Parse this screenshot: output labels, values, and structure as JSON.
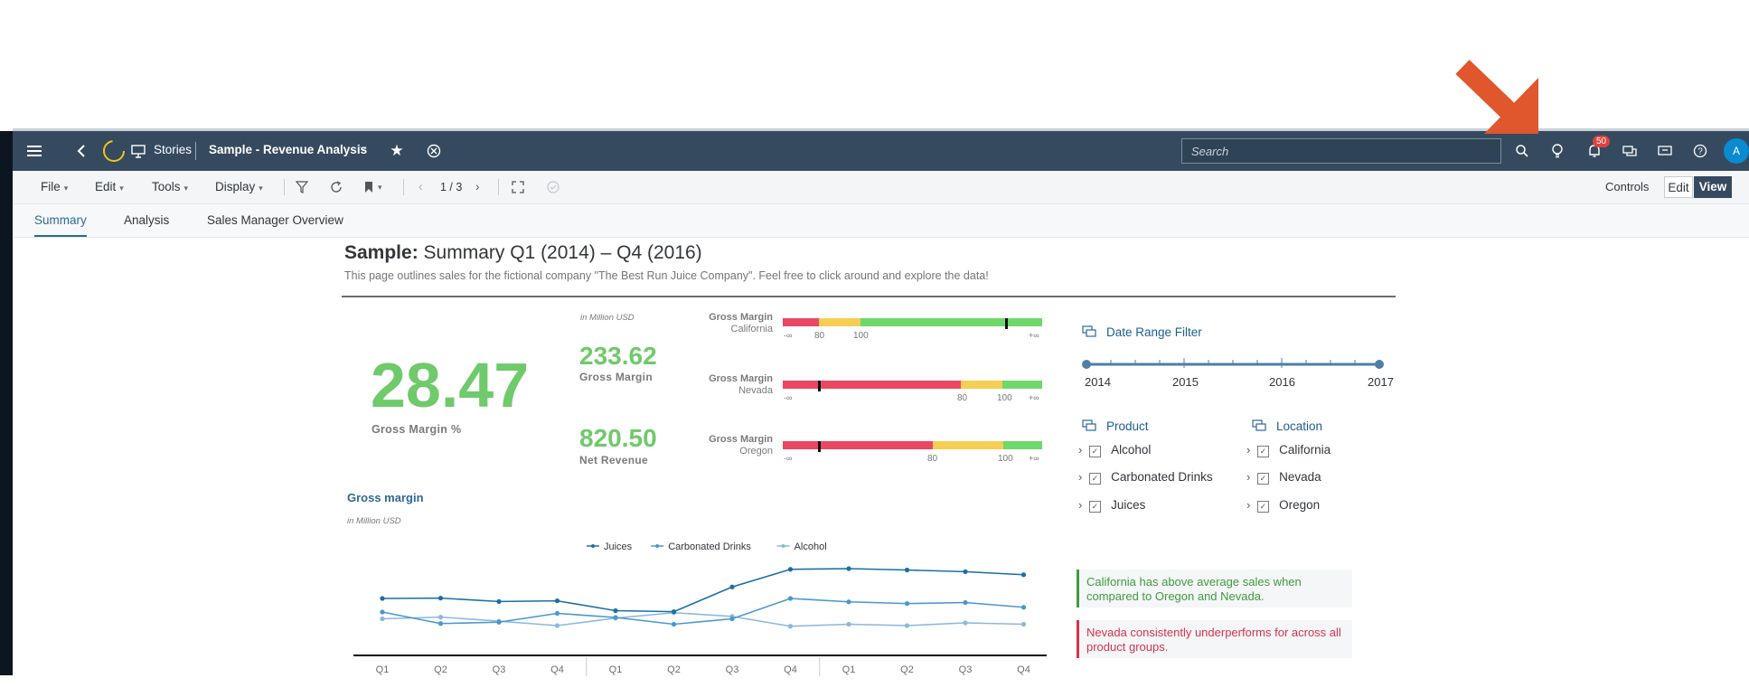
{
  "shell": {
    "stories_label": "Stories",
    "story_title": "Sample - Revenue Analysis",
    "search_placeholder": "Search",
    "notifications_count": "50",
    "avatar_initial": "A"
  },
  "toolbar": {
    "file": "File",
    "edit": "Edit",
    "tools": "Tools",
    "display": "Display",
    "page_indicator": "1 / 3",
    "controls": "Controls",
    "edit_mode": "Edit",
    "view_mode": "View"
  },
  "tabs": [
    {
      "label": "Summary"
    },
    {
      "label": "Analysis"
    },
    {
      "label": "Sales Manager Overview"
    }
  ],
  "page": {
    "heading_bold": "Sample:",
    "heading_rest": " Summary Q1 (2014) – Q4 (2016)",
    "description": "This page outlines sales for the fictional company \"The Best Run Juice Company\". Feel free to click around and explore the data!"
  },
  "kpis": {
    "unit_note": "in Million USD",
    "gross_margin_pct_value": "28.47",
    "gross_margin_pct_label": "Gross Margin %",
    "gross_margin_value": "233.62",
    "gross_margin_label": "Gross Margin",
    "net_revenue_value": "820.50",
    "net_revenue_label": "Net Revenue"
  },
  "bullets": [
    {
      "title": "Gross Margin",
      "region": "California",
      "ticks": [
        "-∞",
        "80",
        "100",
        "+∞"
      ],
      "marker": 0.86
    },
    {
      "title": "Gross Margin",
      "region": "Nevada",
      "ticks": [
        "-∞",
        "80",
        "100",
        "+∞"
      ],
      "marker": 0.14
    },
    {
      "title": "Gross Margin",
      "region": "Oregon",
      "ticks": [
        "-∞",
        "80",
        "100",
        "+∞"
      ],
      "marker": 0.14
    }
  ],
  "colors": {
    "shell": "#354a5f",
    "kpi_green": "#6fca6b",
    "bullet_red": "#ea4763",
    "bullet_yellow": "#f5ce53",
    "bullet_green": "#6fd86b",
    "arrow": "#e0572d"
  },
  "filters": {
    "date_range_title": "Date Range Filter",
    "years": [
      "2014",
      "2015",
      "2016",
      "2017"
    ],
    "product_title": "Product",
    "products": [
      "Alcohol",
      "Carbonated Drinks",
      "Juices"
    ],
    "location_title": "Location",
    "locations": [
      "California",
      "Nevada",
      "Oregon"
    ]
  },
  "insights": {
    "positive": "California has above average sales when compared to Oregon and Nevada.",
    "negative": "Nevada consistently underperforms for across all product groups."
  },
  "chart_data": {
    "type": "line",
    "title": "Gross margin",
    "subtitle": "in Million USD",
    "categories": [
      "Q1",
      "Q2",
      "Q3",
      "Q4",
      "Q1",
      "Q2",
      "Q3",
      "Q4",
      "Q1",
      "Q2",
      "Q3",
      "Q4"
    ],
    "series": [
      {
        "name": "Juices",
        "color": "#1b6fa6",
        "values": [
          8.4,
          8.45,
          7.95,
          8.05,
          6.6,
          6.45,
          10.1,
          12.7,
          12.8,
          12.6,
          12.35,
          11.9
        ]
      },
      {
        "name": "Carbonated Drinks",
        "color": "#4a97cf",
        "values": [
          6.4,
          4.7,
          4.9,
          6.2,
          5.6,
          4.6,
          5.4,
          8.4,
          7.9,
          7.65,
          7.8,
          7.1
        ]
      },
      {
        "name": "Alcohol",
        "color": "#8bb8de",
        "values": [
          5.4,
          5.65,
          5.05,
          4.4,
          5.5,
          6.3,
          5.75,
          4.3,
          4.6,
          4.4,
          4.8,
          4.6
        ]
      }
    ],
    "ylim": [
      0,
      14
    ],
    "legend": "top-center",
    "grid": false
  }
}
